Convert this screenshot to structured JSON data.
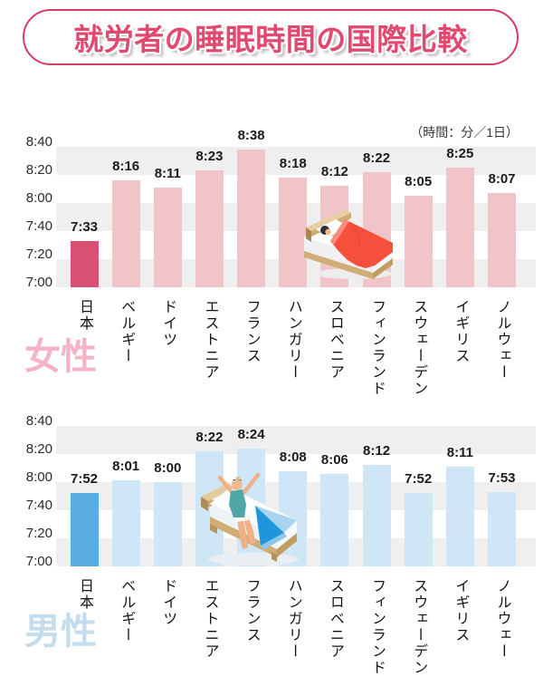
{
  "title": "就労者の睡眠時間の国際比較",
  "unit_note": "（時間：分／1日）",
  "colors": {
    "title_pink": "#e2496f",
    "band_gray": "#f0efef",
    "female_bar": "#f0c4c9",
    "female_highlight": "#da5074",
    "female_group_label": "#f4b4c6",
    "male_bar": "#cfe6f7",
    "male_highlight": "#58ace0",
    "male_group_label": "#c3dcee"
  },
  "chart_data": [
    {
      "type": "bar",
      "group_label": "女性",
      "categories": [
        "日本",
        "ベルギー",
        "ドイツ",
        "エストニア",
        "フランス",
        "ハンガリー",
        "スロベニア",
        "フィンランド",
        "スウェーデン",
        "イギリス",
        "ノルウェー"
      ],
      "values_hhmm": [
        "7:33",
        "8:16",
        "8:11",
        "8:23",
        "8:38",
        "8:18",
        "8:12",
        "8:22",
        "8:05",
        "8:25",
        "8:07"
      ],
      "values_minutes": [
        453,
        496,
        491,
        503,
        518,
        498,
        492,
        502,
        485,
        505,
        487
      ],
      "ytick_labels": [
        "8:40",
        "8:20",
        "8:00",
        "7:40",
        "7:20",
        "7:00"
      ],
      "ylim_minutes": [
        420,
        520
      ],
      "unit": "時間：分／1日",
      "highlight_index": 0,
      "bar_color": "#f0c4c9",
      "highlight_color": "#da5074",
      "group_label_color": "#f4b4c6"
    },
    {
      "type": "bar",
      "group_label": "男性",
      "categories": [
        "日本",
        "ベルギー",
        "ドイツ",
        "エストニア",
        "フランス",
        "ハンガリー",
        "スロベニア",
        "フィンランド",
        "スウェーデン",
        "イギリス",
        "ノルウェー"
      ],
      "values_hhmm": [
        "7:52",
        "8:01",
        "8:00",
        "8:22",
        "8:24",
        "8:08",
        "8:06",
        "8:12",
        "7:52",
        "8:11",
        "7:53"
      ],
      "values_minutes": [
        472,
        481,
        480,
        502,
        504,
        488,
        486,
        492,
        472,
        491,
        473
      ],
      "ytick_labels": [
        "8:40",
        "8:20",
        "8:00",
        "7:40",
        "7:20",
        "7:00"
      ],
      "ylim_minutes": [
        420,
        520
      ],
      "unit": "時間：分／1日",
      "highlight_index": 0,
      "bar_color": "#cfe6f7",
      "highlight_color": "#58ace0",
      "group_label_color": "#c3dcee"
    }
  ]
}
